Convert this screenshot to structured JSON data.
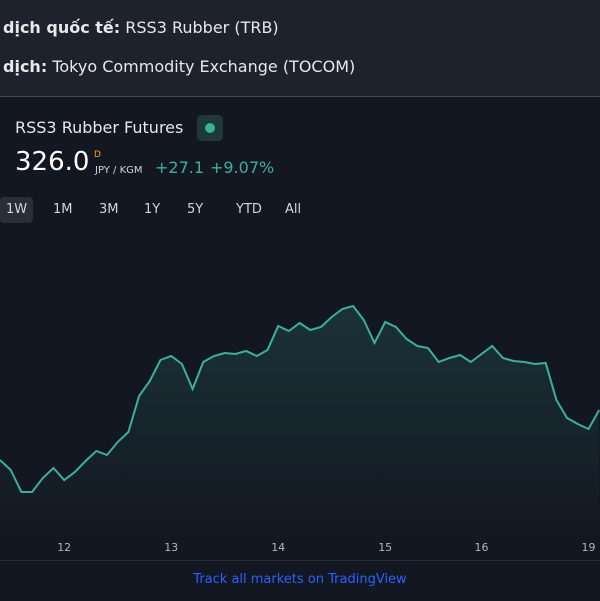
{
  "info": [
    {
      "label": "dịch quốc tế:",
      "value": "RSS3 Rubber (TRB)"
    },
    {
      "label": "dịch:",
      "value": "Tokyo Commodity Exchange (TOCOM)"
    }
  ],
  "widget": {
    "symbol": "RSS3 Rubber Futures",
    "price": "326.0",
    "price_flag": "D",
    "unit": "JPY / KGM",
    "change": "+27.1",
    "change_percent": "+9.07%",
    "ranges": [
      "1W",
      "1M",
      "3M",
      "1Y",
      "5Y",
      "YTD",
      "All"
    ],
    "active_range": "1W",
    "footer_link": "Track all markets on TradingView"
  },
  "chart_data": {
    "type": "line",
    "color": "#3bb19a",
    "categories": [
      null,
      null,
      null,
      null,
      null,
      null,
      "12",
      null,
      null,
      null,
      null,
      null,
      null,
      null,
      null,
      null,
      "13",
      null,
      null,
      null,
      null,
      null,
      null,
      null,
      null,
      null,
      "14",
      null,
      null,
      null,
      null,
      null,
      null,
      null,
      null,
      null,
      "15",
      null,
      null,
      null,
      null,
      null,
      null,
      null,
      null,
      "16",
      null,
      null,
      null,
      null,
      null,
      null,
      null,
      null,
      null,
      "19",
      null
    ],
    "values": [
      301,
      296,
      285,
      285,
      292,
      297,
      291,
      295,
      300.5,
      305.5,
      303.5,
      310,
      315,
      333,
      340.5,
      351,
      353,
      349,
      336.5,
      350,
      353,
      354.5,
      354,
      355.5,
      353,
      356,
      368,
      365.5,
      369.5,
      366,
      367.5,
      372.5,
      376.5,
      378,
      371,
      359.5,
      370,
      367.5,
      361.5,
      358,
      357,
      350,
      352,
      353.5,
      350,
      354,
      358,
      352,
      350.5,
      350,
      349,
      349.5,
      331,
      322,
      319,
      316.5,
      326
    ],
    "ylim": [
      262,
      414
    ]
  }
}
